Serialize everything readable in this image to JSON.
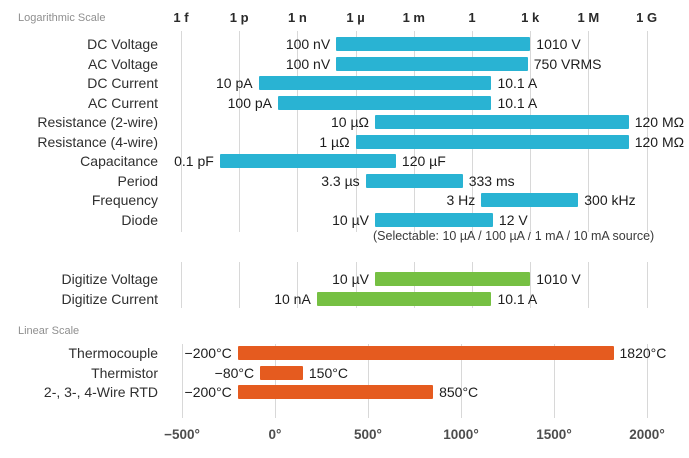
{
  "chart_data": [
    {
      "type": "bar",
      "subtype": "horizontal-range",
      "section_label": "Logarithmic Scale",
      "bar_color": "#29b3d3",
      "axis": {
        "position": "top",
        "scale": "log",
        "tick_labels": [
          "1 f",
          "1 p",
          "1 n",
          "1 µ",
          "1 m",
          "1",
          "1 k",
          "1 M",
          "1 G"
        ],
        "tick_values": [
          1e-15,
          1e-12,
          1e-09,
          1e-06,
          0.001,
          1,
          1000.0,
          1000000.0,
          1000000000.0
        ]
      },
      "rows": [
        {
          "label": "DC Voltage",
          "min": 1e-07,
          "max": 1010,
          "min_label": "100 nV",
          "max_label": "1010 V"
        },
        {
          "label": "AC Voltage",
          "min": 1e-07,
          "max": 750,
          "min_label": "100 nV",
          "max_label": "750 VRMS"
        },
        {
          "label": "DC Current",
          "min": 1e-11,
          "max": 10.1,
          "min_label": "10 pA",
          "max_label": "10.1 A"
        },
        {
          "label": "AC Current",
          "min": 1e-10,
          "max": 10.1,
          "min_label": "100 pA",
          "max_label": "10.1 A"
        },
        {
          "label": "Resistance (2-wire)",
          "min": 1e-05,
          "max": 120000000.0,
          "min_label": "10 µΩ",
          "max_label": "120 MΩ"
        },
        {
          "label": "Resistance (4-wire)",
          "min": 1e-06,
          "max": 120000000.0,
          "min_label": "1 µΩ",
          "max_label": "120 MΩ"
        },
        {
          "label": "Capacitance",
          "min": 1e-13,
          "max": 0.00012,
          "min_label": "0.1 pF",
          "max_label": "120 µF"
        },
        {
          "label": "Period",
          "min": 3.3e-06,
          "max": 0.333,
          "min_label": "3.3 µs",
          "max_label": "333 ms"
        },
        {
          "label": "Frequency",
          "min": 3,
          "max": 300000.0,
          "min_label": "3 Hz",
          "max_label": "300 kHz"
        },
        {
          "label": "Diode",
          "min": 1e-05,
          "max": 12,
          "min_label": "10 µV",
          "max_label": "12 V"
        }
      ],
      "note": "(Selectable: 10 µA / 100 µA / 1 mA / 10 mA source)"
    },
    {
      "type": "bar",
      "subtype": "horizontal-range",
      "bar_color": "#76c043",
      "axis": {
        "scale": "log",
        "shared_with": "Logarithmic Scale"
      },
      "rows": [
        {
          "label": "Digitize Voltage",
          "min": 1e-05,
          "max": 1010,
          "min_label": "10 µV",
          "max_label": "1010 V"
        },
        {
          "label": "Digitize Current",
          "min": 1e-08,
          "max": 10.1,
          "min_label": "10 nA",
          "max_label": "10.1 A"
        }
      ]
    },
    {
      "type": "bar",
      "subtype": "horizontal-range",
      "section_label": "Linear Scale",
      "bar_color": "#e55b1f",
      "axis": {
        "position": "bottom",
        "scale": "linear",
        "tick_labels": [
          "−500°",
          "0°",
          "500°",
          "1000°",
          "1500°",
          "2000°"
        ],
        "tick_values": [
          -500,
          0,
          500,
          1000,
          1500,
          2000
        ],
        "xlim": [
          -500,
          2000
        ]
      },
      "rows": [
        {
          "label": "Thermocouple",
          "min": -200,
          "max": 1820,
          "min_label": "−200°C",
          "max_label": "1820°C"
        },
        {
          "label": "Thermistor",
          "min": -80,
          "max": 150,
          "min_label": "−80°C",
          "max_label": "150°C"
        },
        {
          "label": "2-, 3-, 4-Wire RTD",
          "min": -200,
          "max": 850,
          "min_label": "−200°C",
          "max_label": "850°C"
        }
      ]
    }
  ],
  "colors": {
    "grid": "#d8d8d8",
    "blue_bar": "#29b3d3",
    "green_bar": "#76c043",
    "orange_bar": "#e55b1f",
    "background": "#ffffff"
  }
}
